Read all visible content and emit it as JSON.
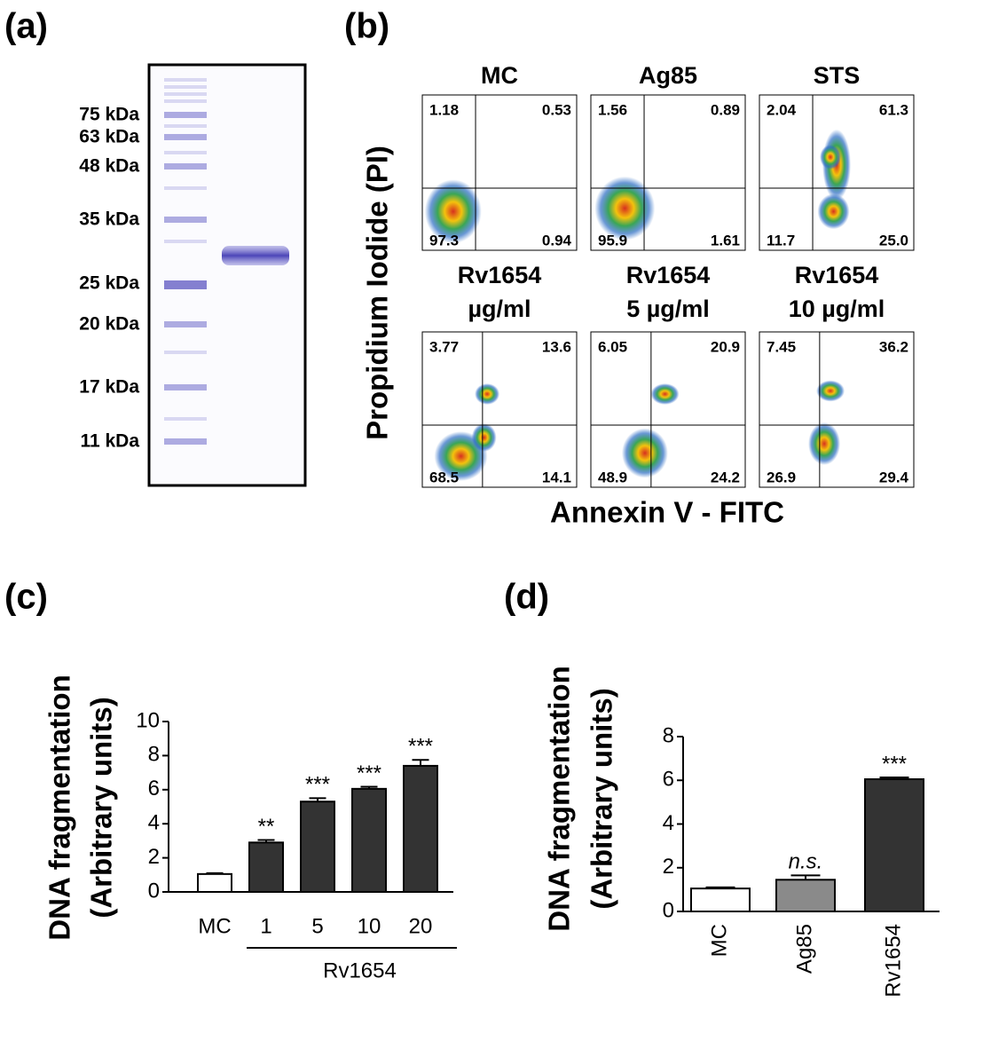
{
  "panel_labels": [
    "(a)",
    "(b)",
    "(c)",
    "(d)"
  ],
  "gel": {
    "ladder": [
      "75 kDa",
      "63 kDa",
      "48 kDa",
      "35 kDa",
      "25 kDa",
      "20 kDa",
      "17 kDa",
      "11 kDa"
    ]
  },
  "flow": {
    "y_label": "Propidium Iodide (PI)",
    "x_label": "Annexin V - FITC",
    "plots": [
      {
        "title": [
          "MC"
        ],
        "quadrants": [
          "1.18",
          "0.53",
          "97.3",
          "0.94"
        ]
      },
      {
        "title": [
          "Ag85"
        ],
        "quadrants": [
          "1.56",
          "0.89",
          "95.9",
          "1.61"
        ]
      },
      {
        "title": [
          "STS"
        ],
        "quadrants": [
          "2.04",
          "61.3",
          "11.7",
          "25.0"
        ]
      },
      {
        "title": [
          "Rv1654",
          "µg/ml"
        ],
        "quadrants": [
          "3.77",
          "13.6",
          "68.5",
          "14.1"
        ]
      },
      {
        "title": [
          "Rv1654",
          "5 µg/ml"
        ],
        "quadrants": [
          "6.05",
          "20.9",
          "48.9",
          "24.2"
        ]
      },
      {
        "title": [
          "Rv1654",
          "10 µg/ml"
        ],
        "quadrants": [
          "7.45",
          "36.2",
          "26.9",
          "29.4"
        ]
      }
    ]
  },
  "chart_data": [
    {
      "type": "bar",
      "y_label": [
        "DNA fragmentation",
        "(Arbitrary units)"
      ],
      "categories": [
        "MC",
        "1",
        "5",
        "10",
        "20"
      ],
      "group_label": "Rv1654",
      "values": [
        1.05,
        2.9,
        5.3,
        6.05,
        7.4
      ],
      "errors": [
        0.05,
        0.15,
        0.2,
        0.12,
        0.35
      ],
      "annotations": [
        null,
        "**",
        "***",
        "***",
        "***"
      ],
      "colors": [
        "#ffffff",
        "#333333",
        "#333333",
        "#333333",
        "#333333"
      ],
      "ylim": [
        0,
        10
      ],
      "yticks": [
        0,
        2,
        4,
        6,
        8,
        10
      ]
    },
    {
      "type": "bar",
      "y_label": [
        "DNA fragmentation",
        "(Arbitrary units)"
      ],
      "categories": [
        "MC",
        "Ag85",
        "Rv1654"
      ],
      "values": [
        1.05,
        1.45,
        6.05
      ],
      "errors": [
        0.05,
        0.2,
        0.08
      ],
      "annotations": [
        null,
        "n.s.",
        "***"
      ],
      "colors": [
        "#ffffff",
        "#8a8a8a",
        "#333333"
      ],
      "ylim": [
        0,
        8
      ],
      "yticks": [
        0,
        2,
        4,
        6,
        8
      ]
    }
  ]
}
